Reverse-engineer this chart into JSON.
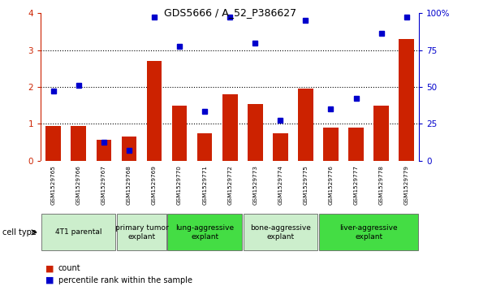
{
  "title": "GDS5666 / A_52_P386627",
  "samples": [
    "GSM1529765",
    "GSM1529766",
    "GSM1529767",
    "GSM1529768",
    "GSM1529769",
    "GSM1529770",
    "GSM1529771",
    "GSM1529772",
    "GSM1529773",
    "GSM1529774",
    "GSM1529775",
    "GSM1529776",
    "GSM1529777",
    "GSM1529778",
    "GSM1529779"
  ],
  "bar_values": [
    0.95,
    0.95,
    0.58,
    0.65,
    2.7,
    1.5,
    0.75,
    1.8,
    1.55,
    0.75,
    1.95,
    0.9,
    0.9,
    1.5,
    3.3
  ],
  "dot_values": [
    47.5,
    51.0,
    12.5,
    7.0,
    97.5,
    77.5,
    33.75,
    97.5,
    80.0,
    27.5,
    95.0,
    35.0,
    42.5,
    86.25,
    97.5
  ],
  "bar_color": "#cc2200",
  "dot_color": "#0000cc",
  "ylim_left": [
    0,
    4
  ],
  "ylim_right": [
    0,
    100
  ],
  "yticks_left": [
    0,
    1,
    2,
    3,
    4
  ],
  "yticks_right": [
    0,
    25,
    50,
    75,
    100
  ],
  "ytick_labels_right": [
    "0",
    "25",
    "50",
    "75",
    "100%"
  ],
  "groups": [
    {
      "label": "4T1 parental",
      "start": 0,
      "end": 3,
      "color": "#cceecc"
    },
    {
      "label": "primary tumor\nexplant",
      "start": 3,
      "end": 5,
      "color": "#cceecc"
    },
    {
      "label": "lung-aggressive\nexplant",
      "start": 5,
      "end": 8,
      "color": "#44dd44"
    },
    {
      "label": "bone-aggressive\nexplant",
      "start": 8,
      "end": 11,
      "color": "#cceecc"
    },
    {
      "label": "liver-aggressive\nexplant",
      "start": 11,
      "end": 15,
      "color": "#44dd44"
    }
  ],
  "cell_type_label": "cell type",
  "legend_bar_label": "count",
  "legend_dot_label": "percentile rank within the sample",
  "tick_color_left": "#cc2200",
  "tick_color_right": "#0000cc",
  "sample_bg_color": "#cccccc",
  "sample_line_color": "#aaaaaa"
}
